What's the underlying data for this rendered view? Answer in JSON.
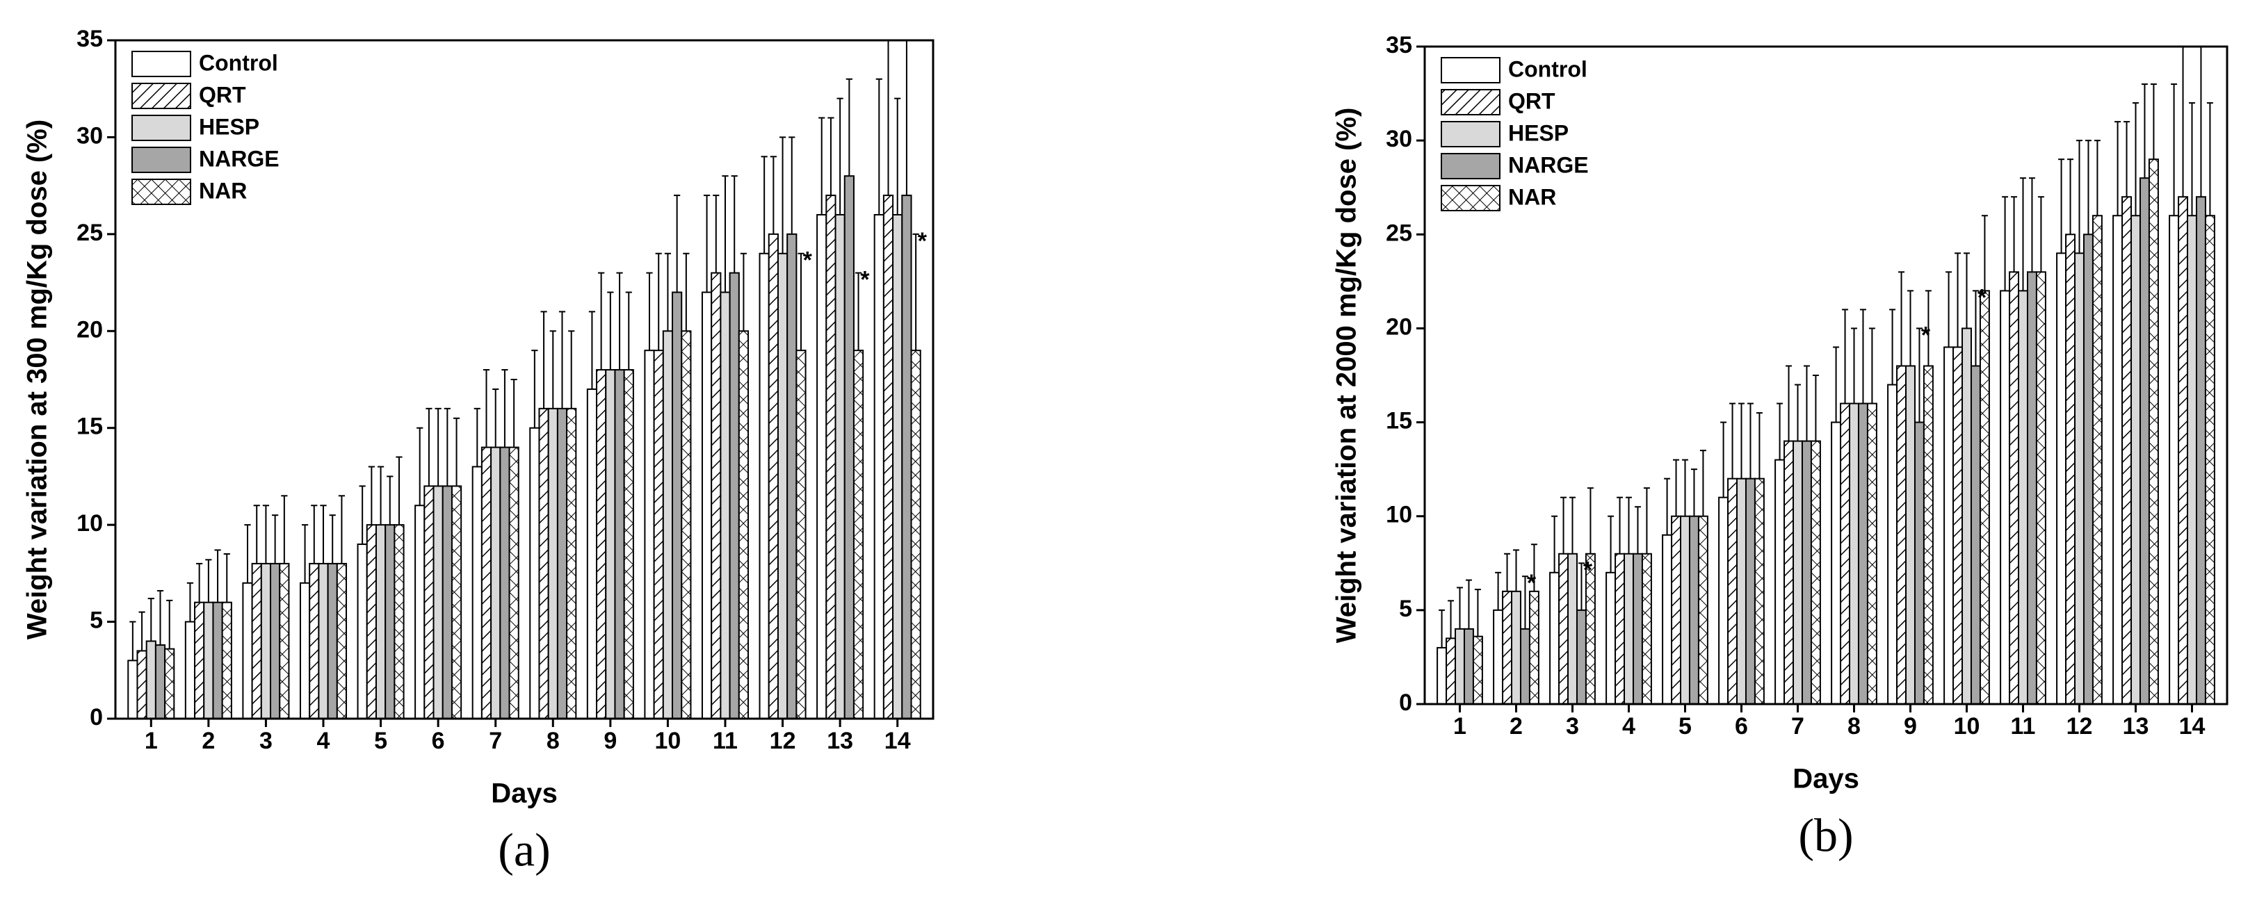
{
  "chart_data": [
    {
      "type": "bar",
      "panel_label": "(a)",
      "x_label": "Days",
      "y_label": "Weight variation at 300 mg/Kg dose (%)",
      "categories": [
        "1",
        "2",
        "3",
        "4",
        "5",
        "6",
        "7",
        "8",
        "9",
        "10",
        "11",
        "12",
        "13",
        "14"
      ],
      "ylim": [
        0,
        35
      ],
      "yticks": [
        0,
        5,
        10,
        15,
        20,
        25,
        30,
        35
      ],
      "legend": "upper left",
      "series": [
        {
          "name": "Control",
          "color": "#ffffff",
          "pattern": "solid",
          "values": [
            3,
            5,
            7,
            7,
            9,
            11,
            13,
            15,
            17,
            19,
            22,
            24,
            26,
            26
          ],
          "errors": [
            2,
            2,
            3,
            3,
            3,
            4,
            3,
            4,
            4,
            4,
            5,
            5,
            5,
            7
          ]
        },
        {
          "name": "QRT",
          "color": "#ffffff",
          "pattern": "hatch",
          "values": [
            3.5,
            6,
            8,
            8,
            10,
            12,
            14,
            16,
            18,
            19,
            23,
            25,
            27,
            27
          ],
          "errors": [
            2,
            2,
            3,
            3,
            3,
            4,
            4,
            5,
            5,
            5,
            4,
            4,
            4,
            8
          ]
        },
        {
          "name": "HESP",
          "color": "#d9d9d9",
          "pattern": "solid",
          "values": [
            4,
            6,
            8,
            8,
            10,
            12,
            14,
            16,
            18,
            20,
            22,
            24,
            26,
            26
          ],
          "errors": [
            2.2,
            2.2,
            3,
            3,
            3,
            4,
            3,
            4,
            4,
            4,
            6,
            6,
            6,
            6
          ]
        },
        {
          "name": "NARGE",
          "color": "#a6a6a6",
          "pattern": "solid",
          "values": [
            3.8,
            6,
            8,
            8,
            10,
            12,
            14,
            16,
            18,
            22,
            23,
            25,
            28,
            27
          ],
          "errors": [
            2.8,
            2.7,
            2.5,
            2.5,
            2.5,
            4,
            4,
            5,
            5,
            5,
            5,
            5,
            5,
            8
          ]
        },
        {
          "name": "NAR",
          "color": "#ffffff",
          "pattern": "cross",
          "values": [
            3.6,
            6,
            8,
            8,
            10,
            12,
            14,
            16,
            18,
            20,
            20,
            19,
            19,
            19
          ],
          "errors": [
            2.5,
            2.5,
            3.5,
            3.5,
            3.5,
            3.5,
            3.5,
            4,
            4,
            4,
            4,
            5,
            4,
            6
          ]
        }
      ],
      "annotations": [
        {
          "text": "*",
          "category": 11,
          "series": 4
        },
        {
          "text": "*",
          "category": 12,
          "series": 4
        },
        {
          "text": "*",
          "category": 13,
          "series": 4
        }
      ]
    },
    {
      "type": "bar",
      "panel_label": "(b)",
      "x_label": "Days",
      "y_label": "Weight variation at 2000 mg/Kg dose (%)",
      "categories": [
        "1",
        "2",
        "3",
        "4",
        "5",
        "6",
        "7",
        "8",
        "9",
        "10",
        "11",
        "12",
        "13",
        "14"
      ],
      "ylim": [
        0,
        35
      ],
      "yticks": [
        0,
        5,
        10,
        15,
        20,
        25,
        30,
        35
      ],
      "legend": "upper left",
      "series": [
        {
          "name": "Control",
          "color": "#ffffff",
          "pattern": "solid",
          "values": [
            3,
            5,
            7,
            7,
            9,
            11,
            13,
            15,
            17,
            19,
            22,
            24,
            26,
            26
          ],
          "errors": [
            2,
            2,
            3,
            3,
            3,
            4,
            3,
            4,
            4,
            4,
            5,
            5,
            5,
            7
          ]
        },
        {
          "name": "QRT",
          "color": "#ffffff",
          "pattern": "hatch",
          "values": [
            3.5,
            6,
            8,
            8,
            10,
            12,
            14,
            16,
            18,
            19,
            23,
            25,
            27,
            27
          ],
          "errors": [
            2,
            2,
            3,
            3,
            3,
            4,
            4,
            5,
            5,
            5,
            4,
            4,
            4,
            8
          ]
        },
        {
          "name": "HESP",
          "color": "#d9d9d9",
          "pattern": "solid",
          "values": [
            4,
            6,
            8,
            8,
            10,
            12,
            14,
            16,
            18,
            20,
            22,
            24,
            26,
            26
          ],
          "errors": [
            2.2,
            2.2,
            3,
            3,
            3,
            4,
            3,
            4,
            4,
            4,
            6,
            6,
            6,
            6
          ]
        },
        {
          "name": "NARGE",
          "color": "#a6a6a6",
          "pattern": "solid",
          "values": [
            4,
            4,
            5,
            8,
            10,
            12,
            14,
            16,
            15,
            18,
            23,
            25,
            28,
            27
          ],
          "errors": [
            2.6,
            2.8,
            2.5,
            2.5,
            2.5,
            4,
            4,
            5,
            5,
            4,
            5,
            5,
            5,
            8
          ]
        },
        {
          "name": "NAR",
          "color": "#ffffff",
          "pattern": "cross",
          "values": [
            3.6,
            6,
            8,
            8,
            10,
            12,
            14,
            16,
            18,
            22,
            23,
            26,
            29,
            26
          ],
          "errors": [
            2.5,
            2.5,
            3.5,
            3.5,
            3.5,
            3.5,
            3.5,
            4,
            4,
            4,
            4,
            4,
            4,
            6
          ]
        }
      ],
      "annotations": [
        {
          "text": "*",
          "category": 1,
          "series": 3
        },
        {
          "text": "*",
          "category": 2,
          "series": 3
        },
        {
          "text": "*",
          "category": 8,
          "series": 3
        },
        {
          "text": "*",
          "category": 9,
          "series": 3
        }
      ]
    }
  ]
}
